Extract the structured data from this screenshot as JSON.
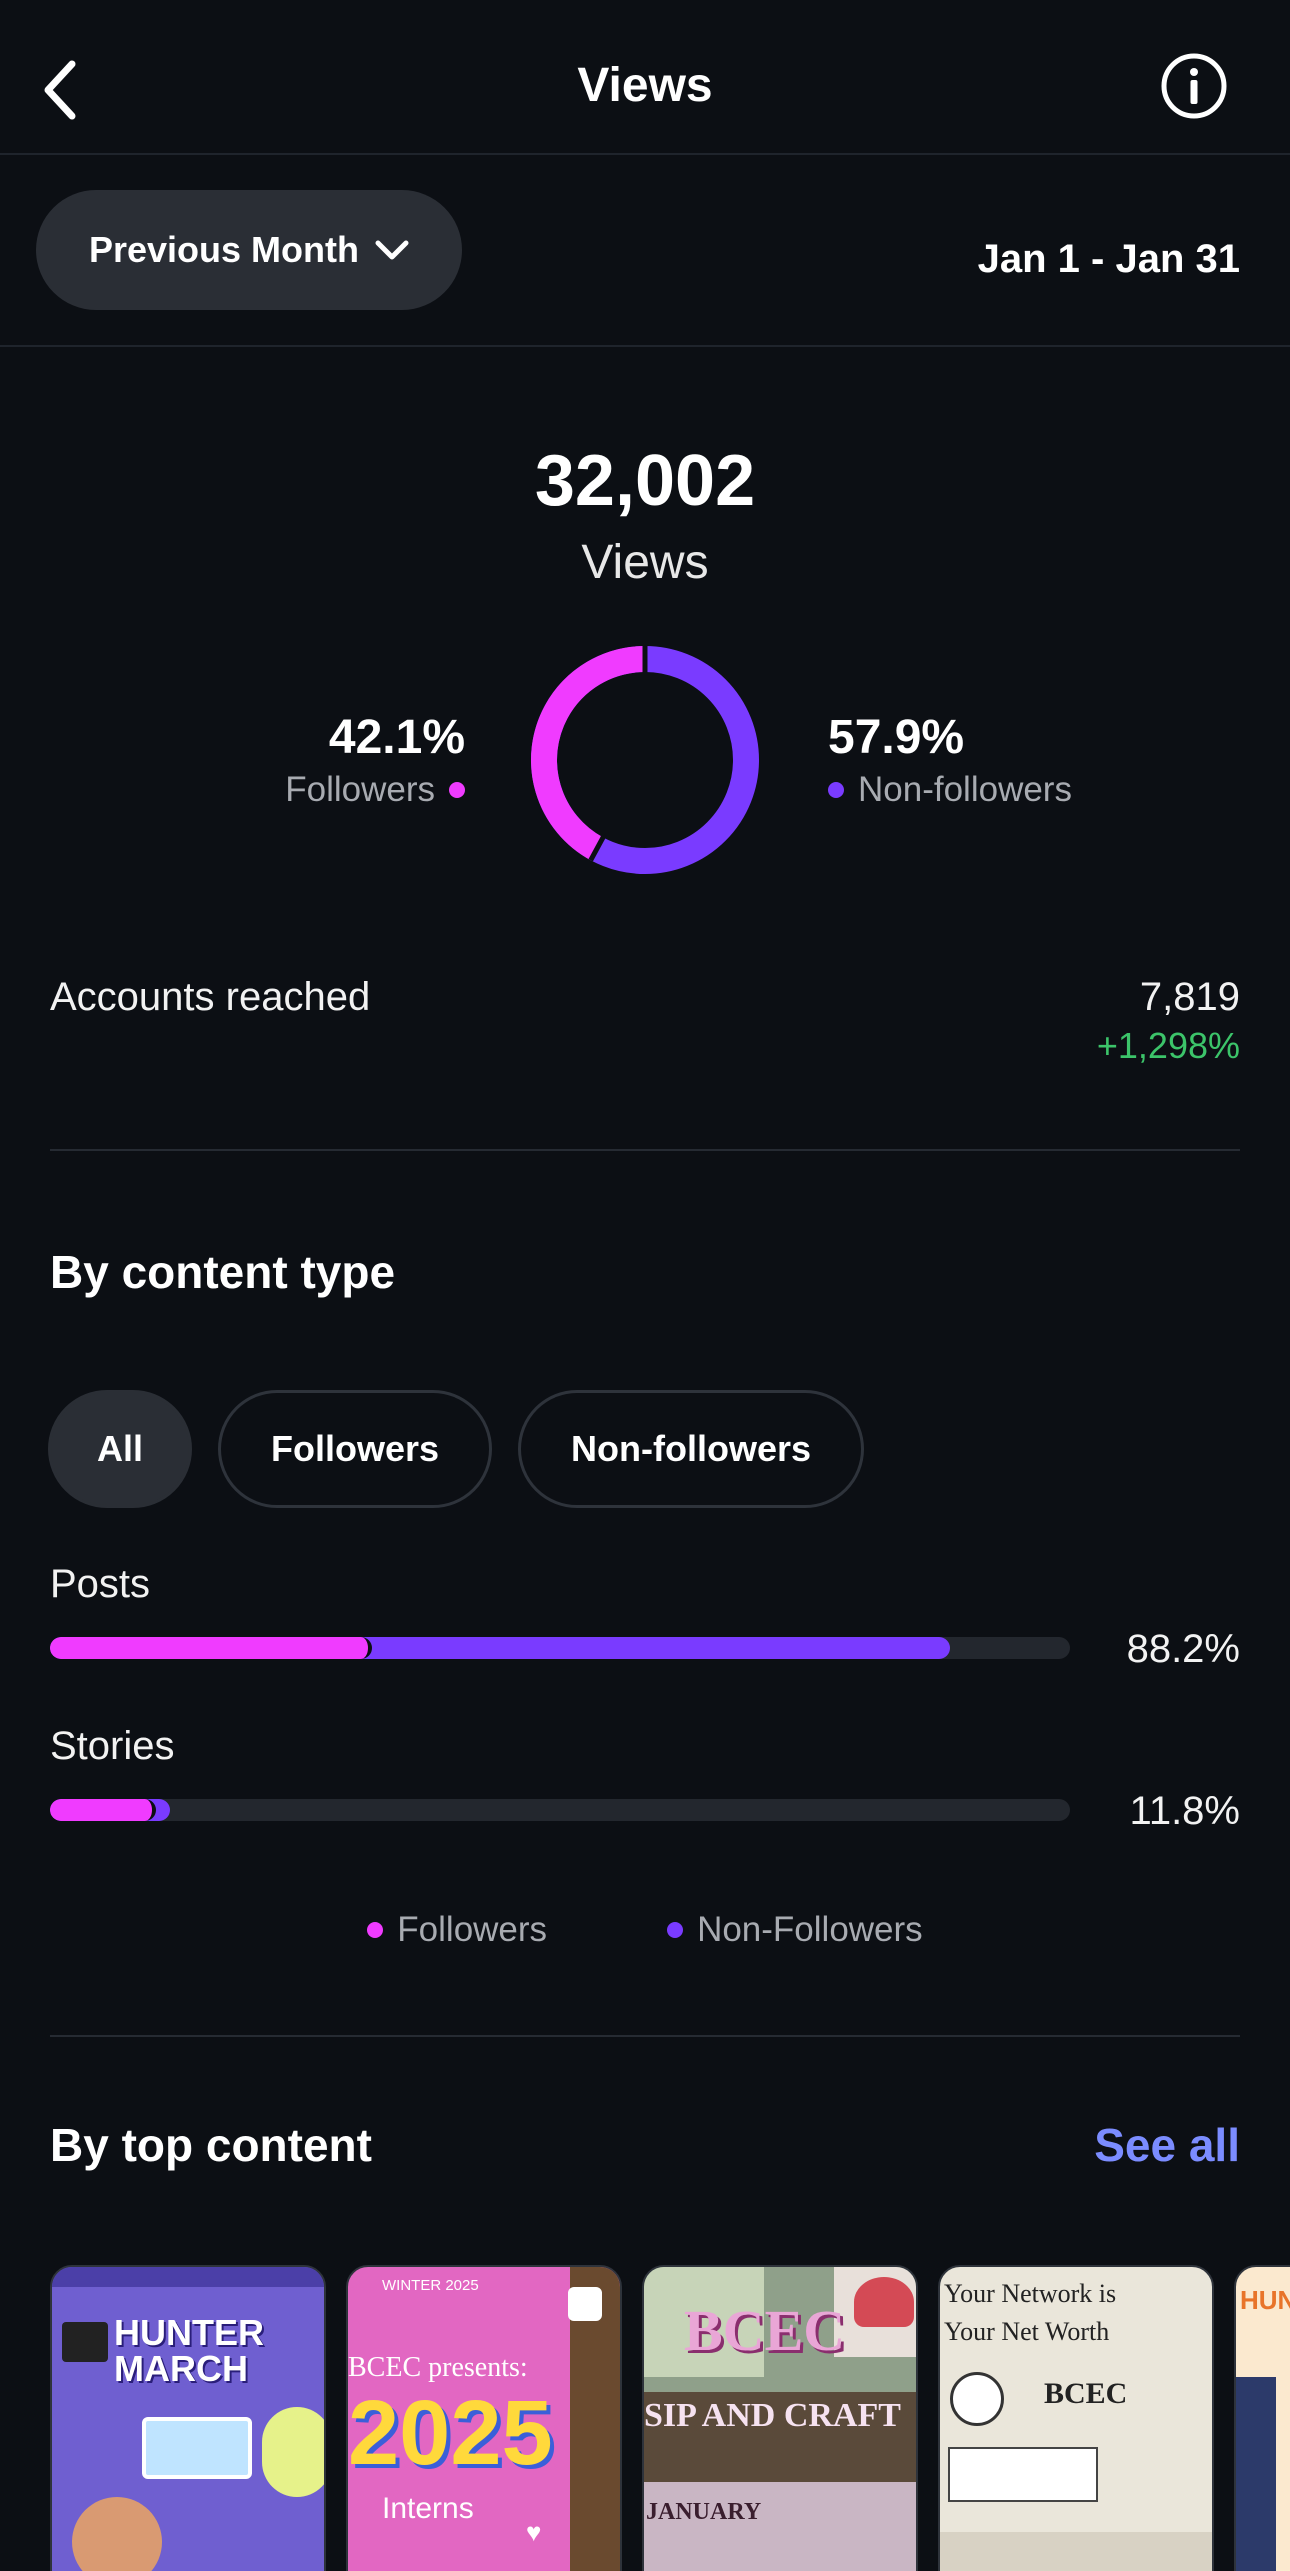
{
  "header": {
    "title": "Views",
    "back_icon": "chevron-left-icon",
    "info_icon": "info-icon"
  },
  "range": {
    "period": "Previous Month",
    "dates": "Jan 1 - Jan 31"
  },
  "summary": {
    "total": "32,002",
    "total_label": "Views"
  },
  "split": {
    "followers_pct": "42.1%",
    "followers_label": "Followers",
    "non_followers_pct": "57.9%",
    "non_followers_label": "Non-followers",
    "followers_fraction": 0.421,
    "colors": {
      "followers": "#f03bff",
      "non_followers": "#7a3bff"
    }
  },
  "reached": {
    "label": "Accounts reached",
    "value": "7,819",
    "change": "+1,298%"
  },
  "content_type": {
    "heading": "By content type",
    "chips": [
      "All",
      "Followers",
      "Non-followers"
    ],
    "rows": [
      {
        "label": "Posts",
        "pct": "88.2%",
        "total_fraction": 0.882,
        "followers_fraction": 0.316
      },
      {
        "label": "Stories",
        "pct": "11.8%",
        "total_fraction": 0.118,
        "followers_fraction": 0.104
      }
    ],
    "legend": [
      "Followers",
      "Non-Followers"
    ]
  },
  "top_content": {
    "heading": "By top content",
    "see_all": "See all",
    "thumbs": [
      {
        "title": "HUNTER MARCH"
      },
      {
        "top": "WINTER 2025",
        "line1": "BCEC presents:",
        "big": "2025",
        "bottom": "Interns"
      },
      {
        "title": "BCEC",
        "line1": "SIP AND CRAFT",
        "bottom": "JANUARY"
      },
      {
        "line1": "Your Network is",
        "line2": "Your Net Worth",
        "brand": "BCEC"
      },
      {
        "title": "HUNT"
      }
    ]
  }
}
